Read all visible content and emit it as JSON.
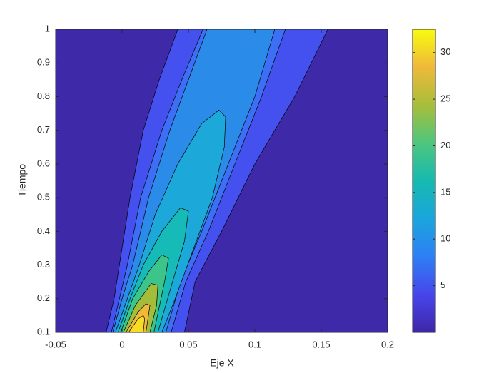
{
  "chart_data": {
    "type": "contour",
    "xlabel": "Eje X",
    "ylabel": "Tiempo",
    "xlim": [
      -0.05,
      0.2
    ],
    "ylim": [
      0.1,
      1
    ],
    "xticks": [
      -0.05,
      0,
      0.05,
      0.1,
      0.15,
      0.2
    ],
    "yticks": [
      0.1,
      0.2,
      0.3,
      0.4,
      0.5,
      0.6,
      0.7,
      0.8,
      0.9,
      1
    ],
    "background_color": "#3e2aa8",
    "contours": [
      {
        "color": "#4451ee",
        "x": [
          -0.012,
          -0.006,
          0,
          0.006,
          0.016,
          0.028,
          0.042,
          0.155,
          0.13,
          0.1,
          0.075,
          0.055,
          0.047
        ],
        "y": [
          0.1,
          0.2,
          0.35,
          0.5,
          0.7,
          0.85,
          1,
          1,
          0.8,
          0.6,
          0.4,
          0.25,
          0.1
        ]
      },
      {
        "color": "#3c6ff6",
        "x": [
          -0.008,
          -0.002,
          0.004,
          0.014,
          0.03,
          0.045,
          0.061,
          0.123,
          0.105,
          0.085,
          0.065,
          0.048,
          0.037
        ],
        "y": [
          0.1,
          0.2,
          0.3,
          0.5,
          0.7,
          0.85,
          1,
          1,
          0.8,
          0.6,
          0.4,
          0.25,
          0.1
        ]
      },
      {
        "color": "#2a8ce8",
        "x": [
          -0.007,
          0,
          0.008,
          0.02,
          0.036,
          0.05,
          0.064,
          0.115,
          0.1,
          0.08,
          0.06,
          0.044,
          0.033
        ],
        "y": [
          0.1,
          0.2,
          0.3,
          0.5,
          0.7,
          0.85,
          1,
          1,
          0.8,
          0.6,
          0.4,
          0.25,
          0.1
        ]
      },
      {
        "color": "#1ca9da",
        "x": [
          -0.005,
          0.004,
          0.013,
          0.025,
          0.042,
          0.06,
          0.073,
          0.078,
          0.077,
          0.068,
          0.054,
          0.04,
          0.03
        ],
        "y": [
          0.1,
          0.2,
          0.3,
          0.45,
          0.6,
          0.72,
          0.76,
          0.74,
          0.65,
          0.5,
          0.35,
          0.2,
          0.1
        ]
      },
      {
        "color": "#16bab6",
        "x": [
          -0.003,
          0.006,
          0.016,
          0.03,
          0.044,
          0.05,
          0.047,
          0.038,
          0.027
        ],
        "y": [
          0.1,
          0.2,
          0.3,
          0.4,
          0.47,
          0.46,
          0.37,
          0.25,
          0.1
        ]
      },
      {
        "color": "#3cc48b",
        "x": [
          -0.001,
          0.008,
          0.02,
          0.03,
          0.035,
          0.032,
          0.024
        ],
        "y": [
          0.1,
          0.2,
          0.28,
          0.33,
          0.32,
          0.25,
          0.1
        ]
      },
      {
        "color": "#a3bd3b",
        "x": [
          0.001,
          0.01,
          0.022,
          0.027,
          0.026,
          0.021
        ],
        "y": [
          0.1,
          0.18,
          0.245,
          0.24,
          0.18,
          0.1
        ]
      },
      {
        "color": "#f0b93a",
        "x": [
          0.003,
          0.012,
          0.018,
          0.021,
          0.018
        ],
        "y": [
          0.1,
          0.16,
          0.185,
          0.18,
          0.1
        ]
      },
      {
        "color": "#f7dc22",
        "x": [
          0.005,
          0.012,
          0.016,
          0.017,
          0.016
        ],
        "y": [
          0.1,
          0.14,
          0.15,
          0.14,
          0.1
        ]
      }
    ],
    "colorbar": {
      "clim": [
        0,
        32.5
      ],
      "ticks": [
        5,
        10,
        15,
        20,
        25,
        30
      ],
      "colormap": [
        "#3e26a8",
        "#4746eb",
        "#2e7ff5",
        "#1aa5dc",
        "#17bab0",
        "#4ec67d",
        "#a8be3a",
        "#efb93a",
        "#f9fb0e"
      ]
    }
  }
}
